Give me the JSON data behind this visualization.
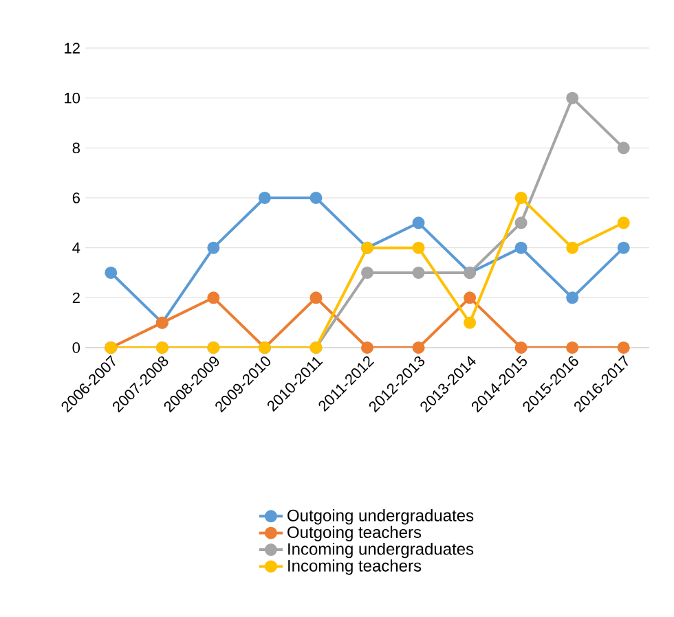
{
  "chart_data": {
    "type": "line",
    "categories": [
      "2006-2007",
      "2007-2008",
      "2008-2009",
      "2009-2010",
      "2010-2011",
      "2011-2012",
      "2012-2013",
      "2013-2014",
      "2014-2015",
      "2015-2016",
      "2016-2017"
    ],
    "series": [
      {
        "name": "Outgoing undergraduates",
        "color": "#5b9bd5",
        "values": [
          3,
          1,
          4,
          6,
          6,
          4,
          5,
          3,
          4,
          2,
          4
        ]
      },
      {
        "name": "Outgoing teachers",
        "color": "#ed7d31",
        "values": [
          0,
          1,
          2,
          0,
          2,
          0,
          0,
          2,
          0,
          0,
          0
        ]
      },
      {
        "name": "Incoming undergraduates",
        "color": "#a5a5a5",
        "values": [
          0,
          0,
          0,
          0,
          0,
          3,
          3,
          3,
          5,
          10,
          8
        ]
      },
      {
        "name": "Incoming teachers",
        "color": "#ffc000",
        "values": [
          0,
          0,
          0,
          0,
          0,
          4,
          4,
          1,
          6,
          4,
          5
        ]
      }
    ],
    "ylim": [
      0,
      12
    ],
    "yticks": [
      0,
      2,
      4,
      6,
      8,
      10,
      12
    ],
    "grid": "y",
    "legend": "bottom",
    "marker": "circle",
    "line_style": "solid"
  }
}
